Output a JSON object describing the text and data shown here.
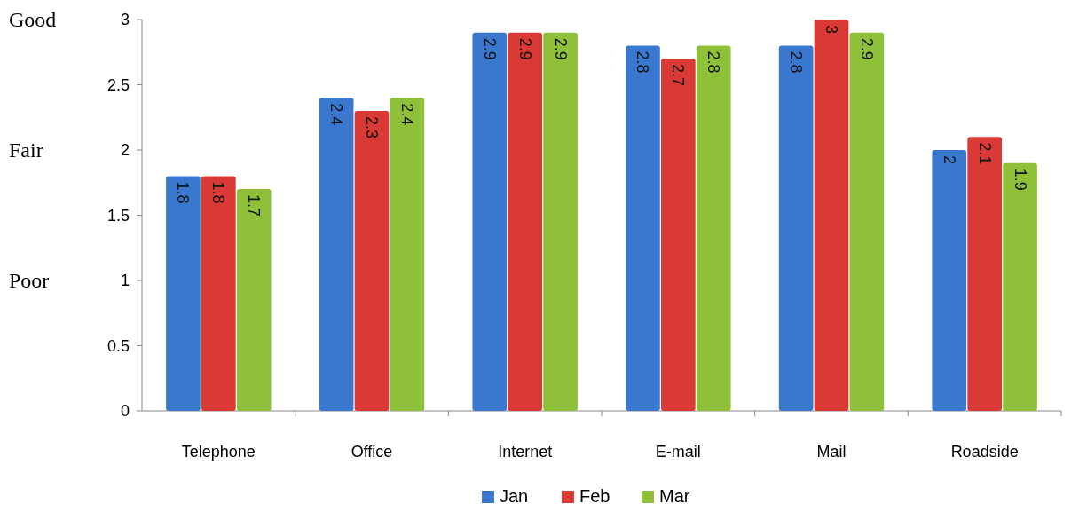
{
  "chart_data": {
    "type": "bar",
    "categories": [
      "Telephone",
      "Office",
      "Internet",
      "E-mail",
      "Mail",
      "Roadside"
    ],
    "series": [
      {
        "name": "Jan",
        "color": "#3a78d0",
        "values": [
          1.8,
          2.4,
          2.9,
          2.8,
          2.8,
          2
        ]
      },
      {
        "name": "Feb",
        "color": "#d93a35",
        "values": [
          1.8,
          2.3,
          2.9,
          2.7,
          3,
          2.1
        ]
      },
      {
        "name": "Mar",
        "color": "#8fc03a",
        "values": [
          1.7,
          2.4,
          2.9,
          2.8,
          2.9,
          1.9
        ]
      }
    ],
    "ylim": [
      0,
      3
    ],
    "yticks": [
      0,
      0.5,
      1,
      1.5,
      2,
      2.5,
      3
    ],
    "annotations": [
      "Good",
      "Fair",
      "Poor"
    ],
    "data_labels": true,
    "legend": "bottom",
    "grid": false
  }
}
